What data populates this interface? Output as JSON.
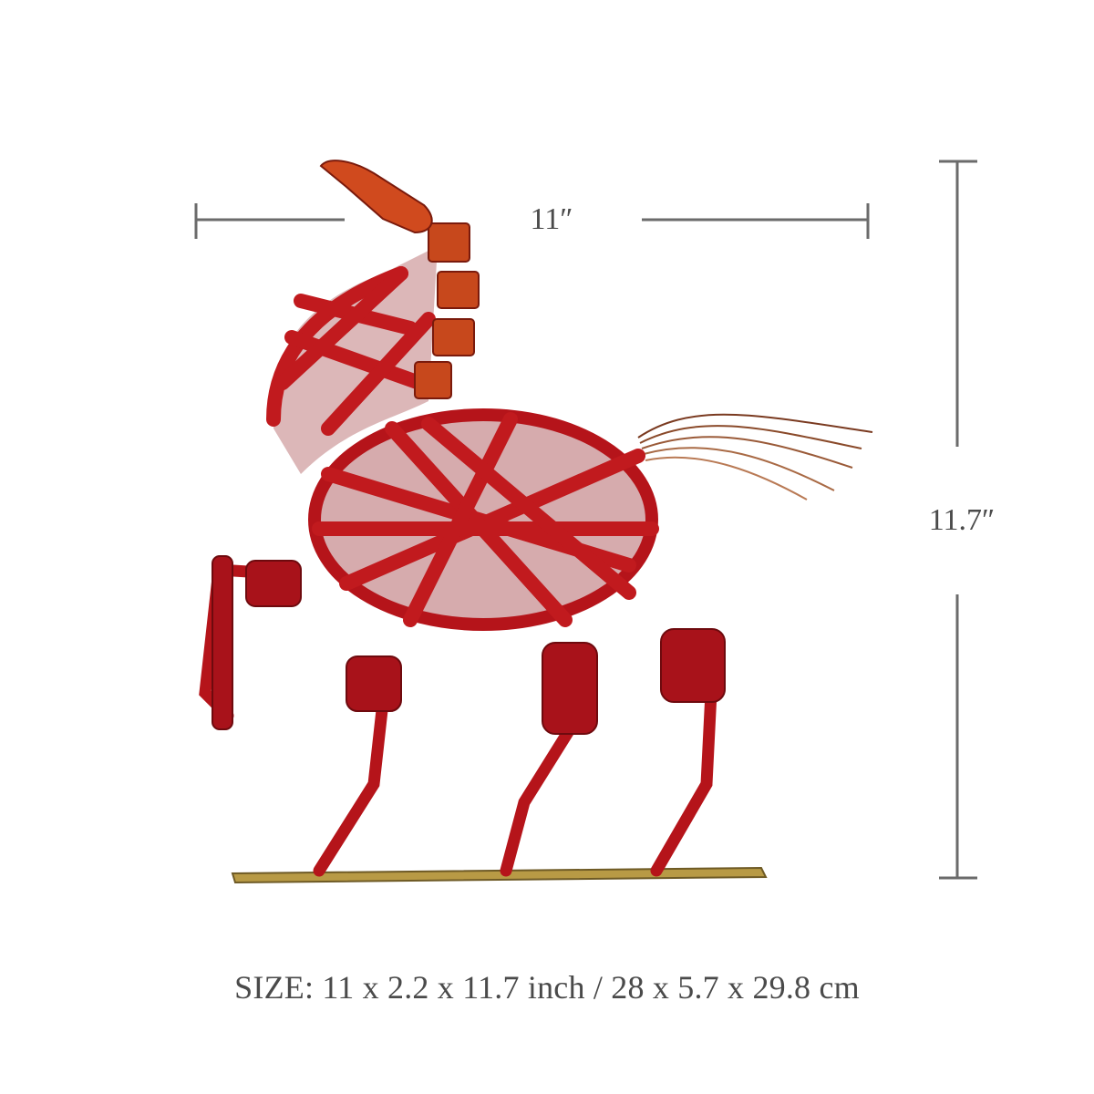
{
  "dimensions": {
    "width_label": "11″",
    "height_label": "11.7″",
    "size_caption": "SIZE: 11 x 2.2 x 11.7 inch / 28 x 5.7 x 29.8 cm"
  },
  "product": {
    "subject": "woven red metal horse sculpture",
    "colors": {
      "ribbon": "#b5141a",
      "ribbon_dark": "#7a0c10",
      "ribbon_highlight": "#d9461e",
      "base": "#b89a45",
      "dimension_line": "#6b6b6b",
      "text": "#4a4a4a"
    }
  }
}
